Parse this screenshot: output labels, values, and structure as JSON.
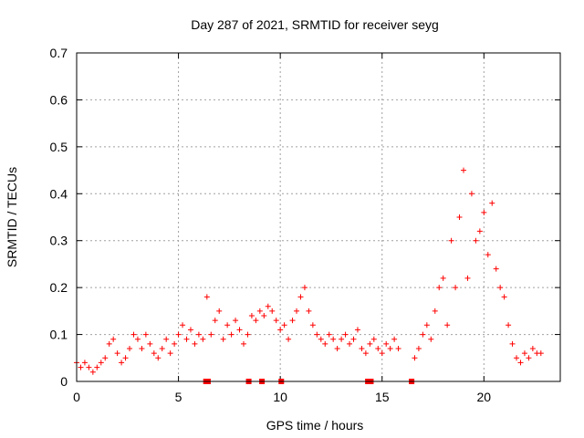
{
  "chart_data": {
    "type": "scatter",
    "title": "Day 287 of 2021, SRMTID for receiver seyg",
    "xlabel": "GPS time / hours",
    "ylabel": "SRMTID / TECUs",
    "xlim": [
      0,
      23.75
    ],
    "ylim": [
      0,
      0.7
    ],
    "x_ticks": [
      0,
      5,
      10,
      15,
      20
    ],
    "y_ticks": [
      0,
      0.1,
      0.2,
      0.3,
      0.4,
      0.5,
      0.6,
      0.7
    ],
    "x_tick_labels": [
      "0",
      "5",
      "10",
      "15",
      "20"
    ],
    "y_tick_labels": [
      "0",
      "0.1",
      "0.2",
      "0.3",
      "0.4",
      "0.5",
      "0.6",
      "0.7"
    ],
    "grid": true,
    "marker": "+",
    "color": "#ff0000",
    "series": [
      {
        "name": "SRMTID",
        "x": [
          0.0,
          0.2,
          0.4,
          0.6,
          0.8,
          1.0,
          1.2,
          1.4,
          1.6,
          1.8,
          2.0,
          2.2,
          2.4,
          2.6,
          2.8,
          3.0,
          3.2,
          3.4,
          3.6,
          3.8,
          4.0,
          4.2,
          4.4,
          4.6,
          4.8,
          5.0,
          5.2,
          5.4,
          5.6,
          5.8,
          6.0,
          6.2,
          6.4,
          6.6,
          6.8,
          7.0,
          7.2,
          7.4,
          7.6,
          7.8,
          8.0,
          8.2,
          8.4,
          8.6,
          8.8,
          9.0,
          9.2,
          9.4,
          9.6,
          9.8,
          10.0,
          10.2,
          10.4,
          10.6,
          10.8,
          11.0,
          11.2,
          11.4,
          11.6,
          11.8,
          12.0,
          12.2,
          12.4,
          12.6,
          12.8,
          13.0,
          13.2,
          13.4,
          13.6,
          13.8,
          14.0,
          14.2,
          14.4,
          14.6,
          14.8,
          15.0,
          15.2,
          15.4,
          15.6,
          15.8,
          16.6,
          16.8,
          17.0,
          17.2,
          17.4,
          17.6,
          17.8,
          18.0,
          18.2,
          18.4,
          18.6,
          18.8,
          19.0,
          19.2,
          19.4,
          19.6,
          19.8,
          20.0,
          20.2,
          20.4,
          20.6,
          20.8,
          21.0,
          21.2,
          21.4,
          21.6,
          21.8,
          22.0,
          22.2,
          22.4,
          22.6,
          22.8
        ],
        "y": [
          0.04,
          0.03,
          0.04,
          0.03,
          0.02,
          0.03,
          0.04,
          0.05,
          0.08,
          0.09,
          0.06,
          0.04,
          0.05,
          0.07,
          0.1,
          0.09,
          0.07,
          0.1,
          0.08,
          0.06,
          0.05,
          0.07,
          0.09,
          0.06,
          0.08,
          0.1,
          0.12,
          0.09,
          0.11,
          0.08,
          0.1,
          0.09,
          0.18,
          0.1,
          0.13,
          0.15,
          0.09,
          0.12,
          0.1,
          0.13,
          0.11,
          0.08,
          0.1,
          0.14,
          0.13,
          0.15,
          0.14,
          0.16,
          0.15,
          0.13,
          0.11,
          0.12,
          0.09,
          0.13,
          0.15,
          0.18,
          0.2,
          0.15,
          0.12,
          0.1,
          0.09,
          0.08,
          0.1,
          0.09,
          0.07,
          0.09,
          0.1,
          0.08,
          0.09,
          0.11,
          0.07,
          0.06,
          0.08,
          0.09,
          0.07,
          0.06,
          0.08,
          0.07,
          0.09,
          0.07,
          0.05,
          0.07,
          0.1,
          0.12,
          0.09,
          0.15,
          0.2,
          0.22,
          0.12,
          0.3,
          0.2,
          0.35,
          0.45,
          0.22,
          0.4,
          0.3,
          0.32,
          0.36,
          0.27,
          0.38,
          0.24,
          0.2,
          0.18,
          0.12,
          0.08,
          0.05,
          0.04,
          0.06,
          0.05,
          0.07,
          0.06,
          0.06
        ]
      }
    ],
    "bottom_markers_x": [
      6.35,
      6.45,
      8.45,
      9.1,
      10.05,
      14.3,
      14.45,
      16.45
    ]
  }
}
